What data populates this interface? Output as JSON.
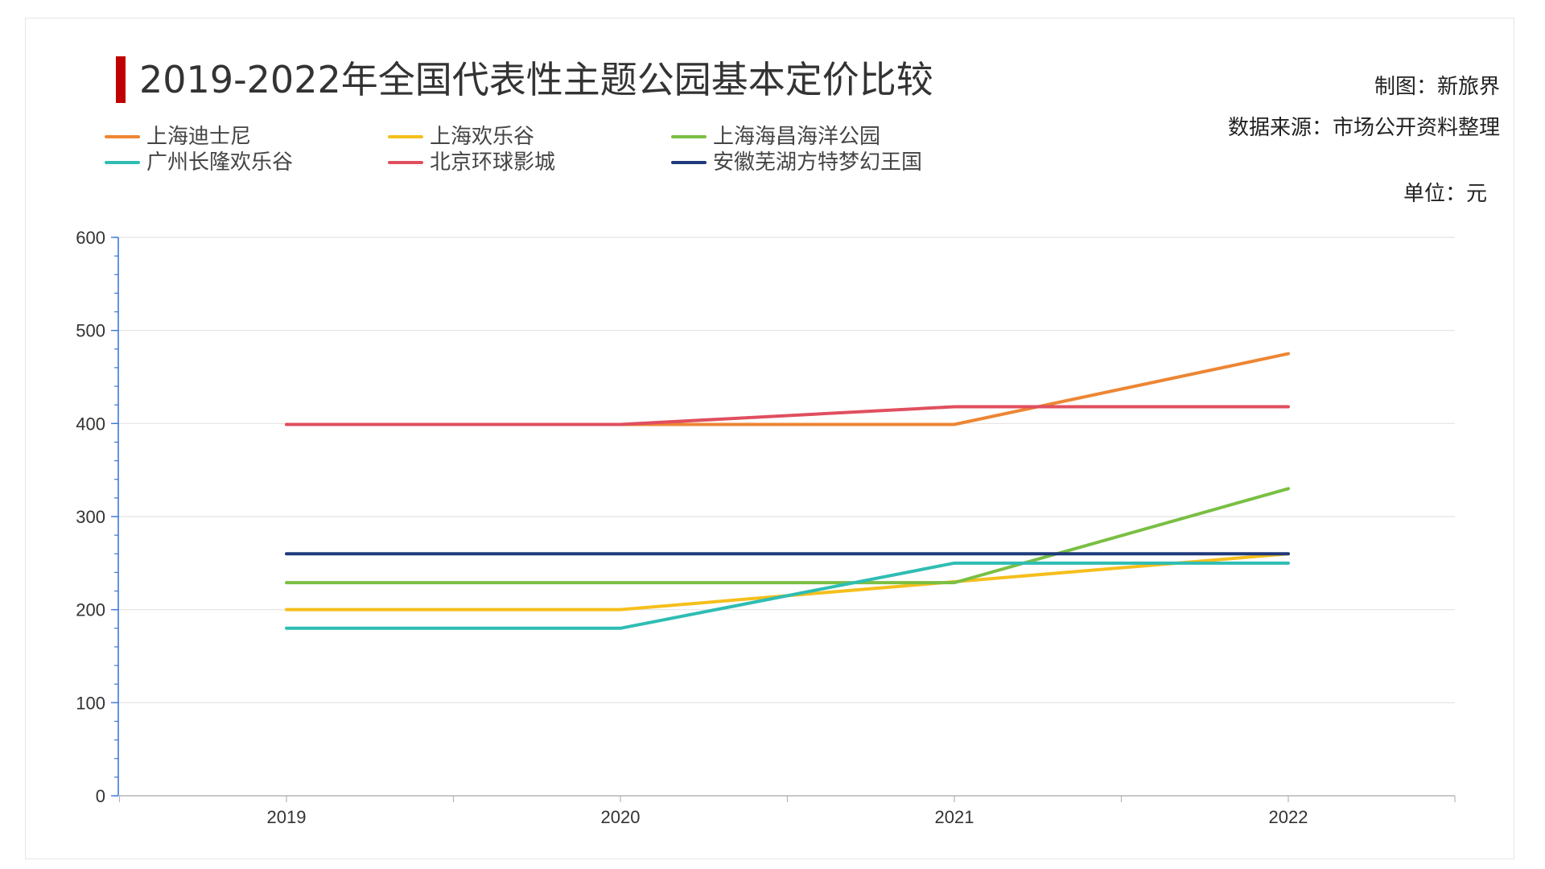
{
  "title": "2019-2022年全国代表性主题公园基本定价比较",
  "credit": "制图：新旅界",
  "source": "数据来源：市场公开资料整理",
  "unit": "单位：元",
  "chart_data": {
    "type": "line",
    "x": [
      "2019",
      "2020",
      "2021",
      "2022"
    ],
    "ylim": [
      0,
      600
    ],
    "yticks": [
      0,
      100,
      200,
      300,
      400,
      500,
      600
    ],
    "grid": true,
    "legend": "top-left",
    "series": [
      {
        "name": "上海迪士尼",
        "color": "#ed8634",
        "values": [
          399,
          399,
          399,
          475
        ]
      },
      {
        "name": "上海欢乐谷",
        "color": "#f5bf1c",
        "values": [
          200,
          200,
          230,
          260
        ]
      },
      {
        "name": "上海海昌海洋公园",
        "color": "#7abf43",
        "values": [
          229,
          229,
          229,
          330
        ]
      },
      {
        "name": "广州长隆欢乐谷",
        "color": "#2fbdb3",
        "values": [
          180,
          180,
          250,
          250
        ]
      },
      {
        "name": "北京环球影城",
        "color": "#e04f5f",
        "values": [
          399,
          399,
          418,
          418
        ]
      },
      {
        "name": "安徽芜湖方特梦幻王国",
        "color": "#1f3a7a",
        "values": [
          260,
          260,
          260,
          260
        ]
      }
    ]
  }
}
